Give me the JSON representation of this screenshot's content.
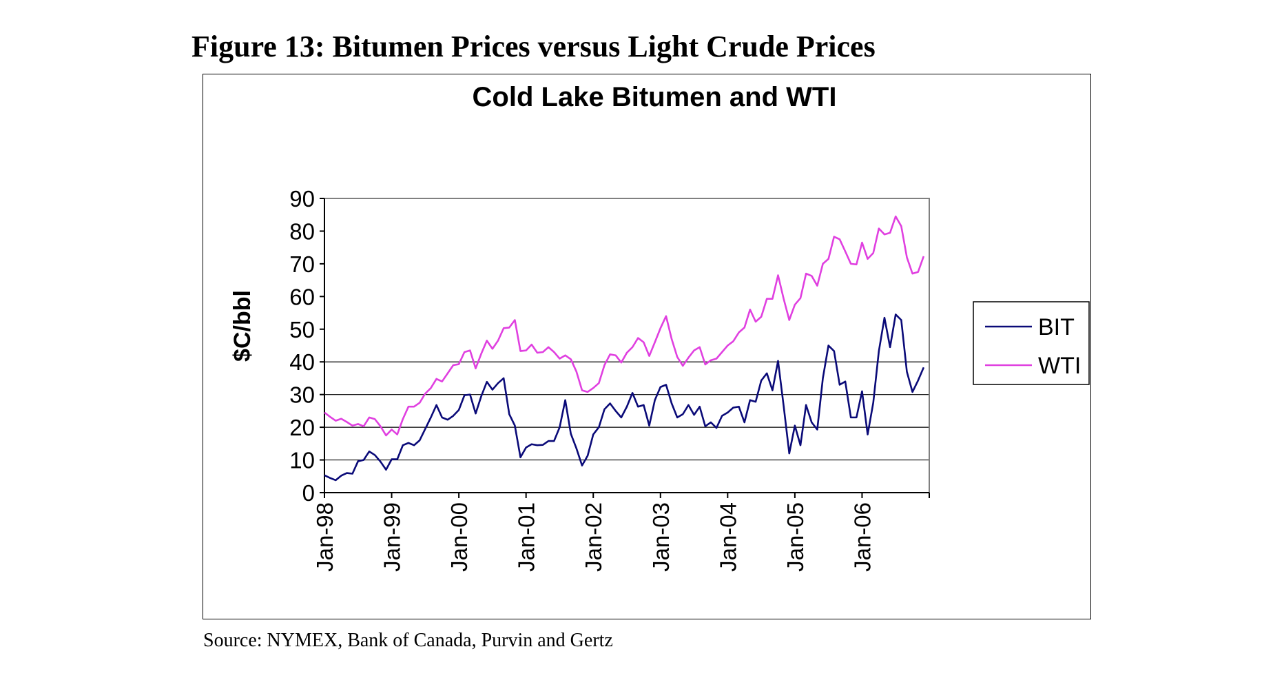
{
  "figure_title": "Figure 13: Bitumen Prices versus Light Crude Prices",
  "source_note": "Source: NYMEX, Bank of Canada, Purvin and Gertz",
  "chart_data": {
    "type": "line",
    "title": "Cold Lake Bitumen and WTI",
    "xlabel": "",
    "ylabel": "$C/bbl",
    "ylim": [
      0,
      90
    ],
    "yticks": [
      0,
      10,
      20,
      30,
      40,
      50,
      60,
      70,
      80,
      90
    ],
    "xlim": [
      "1998-01",
      "2006-12"
    ],
    "xtick_labels": [
      "Jan-98",
      "Jan-99",
      "Jan-00",
      "Jan-01",
      "Jan-02",
      "Jan-03",
      "Jan-04",
      "Jan-05",
      "Jan-06"
    ],
    "grid": "horizontal at 10, 20, 30, 40",
    "legend_position": "right",
    "colors": {
      "BIT": "#0a0a78",
      "WTI": "#e040e0",
      "plot_background": "#ffffff",
      "gridline": "#000000",
      "plot_border": "#808080"
    },
    "series": [
      {
        "name": "BIT",
        "values": [
          5.3,
          4.5,
          3.8,
          5.2,
          6,
          5.8,
          9.6,
          10,
          12.6,
          11.5,
          9.5,
          7,
          10.2,
          10.2,
          14.5,
          15.2,
          14.5,
          16,
          19.5,
          23,
          26.8,
          23,
          22.3,
          23.5,
          25.3,
          29.8,
          30,
          24.2,
          29.5,
          33.9,
          31.5,
          33.5,
          35,
          24,
          20.5,
          10.8,
          13.8,
          14.8,
          14.5,
          14.6,
          15.8,
          15.8,
          20,
          28.3,
          18,
          13.5,
          8.3,
          11.3,
          17.8,
          20,
          25.5,
          27.3,
          25,
          23,
          26.3,
          30.5,
          26.3,
          26.8,
          20.5,
          28.3,
          32.3,
          33,
          27.3,
          23,
          24,
          26.8,
          23.8,
          26.3,
          20.3,
          21.5,
          19.8,
          23.5,
          24.5,
          26,
          26.3,
          21.5,
          28.3,
          27.8,
          34.3,
          36.5,
          31.3,
          40.3,
          26.5,
          12,
          20.5,
          14.5,
          26.8,
          21.5,
          19.3,
          35,
          45,
          43.3,
          33,
          34,
          23,
          23,
          31,
          17.8,
          27.5,
          43.3,
          53.5,
          44.5,
          54.5,
          52.8,
          37,
          30.8,
          34.3,
          38.3
        ]
      },
      {
        "name": "WTI",
        "values": [
          24.5,
          23.2,
          22,
          22.6,
          21.6,
          20.5,
          21,
          20.3,
          23,
          22.5,
          20.3,
          17.5,
          19.3,
          17.8,
          22.5,
          26.3,
          26.3,
          27.5,
          30.3,
          32,
          34.8,
          34,
          36.5,
          39,
          39.3,
          43,
          43.5,
          38,
          42.5,
          46.5,
          44,
          46.5,
          50.3,
          50.5,
          52.8,
          43.3,
          43.5,
          45.3,
          42.8,
          43,
          44.5,
          43,
          41,
          42,
          40.8,
          37,
          31.3,
          30.8,
          32,
          33.5,
          39,
          42.3,
          42,
          39.8,
          42.8,
          44.5,
          47.3,
          46,
          41.8,
          46,
          50.3,
          54,
          47,
          41.5,
          38.8,
          41.3,
          43.5,
          44.5,
          39.2,
          40.5,
          41,
          43,
          45,
          46.3,
          49,
          50.5,
          56,
          52.3,
          53.8,
          59.3,
          59.3,
          66.5,
          59.3,
          52.8,
          57.5,
          59.5,
          67,
          66.3,
          63.3,
          70,
          71.5,
          78.3,
          77.5,
          73.8,
          70,
          69.8,
          76.5,
          71.5,
          73.3,
          80.8,
          79,
          79.5,
          84.5,
          81.5,
          72,
          67,
          67.5,
          72.3
        ]
      }
    ]
  }
}
